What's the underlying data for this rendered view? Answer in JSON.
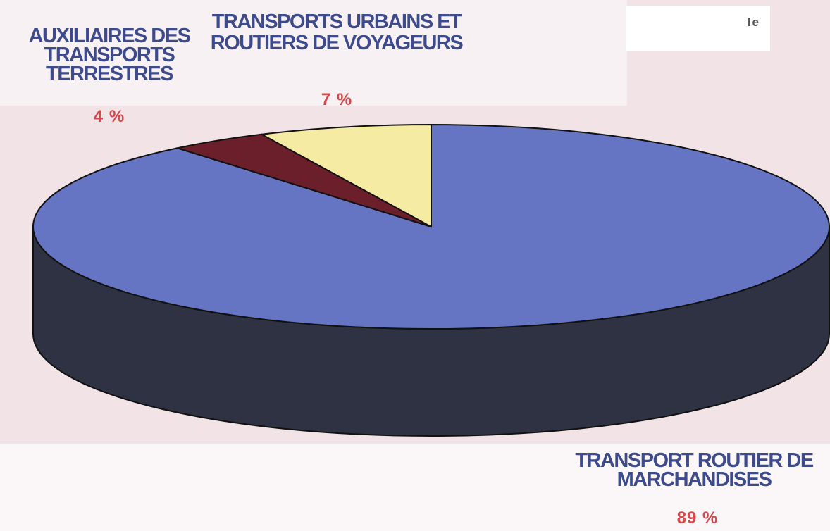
{
  "chart_data": {
    "type": "pie",
    "categories": [
      "TRANSPORT ROUTIER DE MARCHANDISES",
      "AUXILIAIRES DES TRANSPORTS TERRESTRES",
      "TRANSPORTS URBAINS ET ROUTIERS DE VOYAGEURS"
    ],
    "values": [
      89,
      4,
      7
    ],
    "value_labels": [
      "89 %",
      "4 %",
      "7 %"
    ],
    "colors": [
      "#6674c4",
      "#6b1f2a",
      "#f6eba2"
    ],
    "side_color": "#2e3242",
    "annotations": [
      "le"
    ]
  }
}
